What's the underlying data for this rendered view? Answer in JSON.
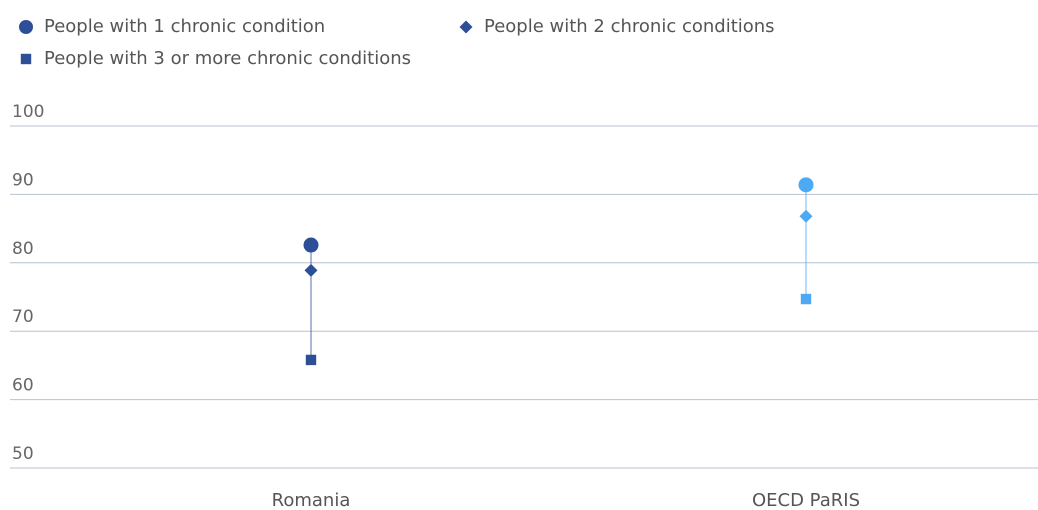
{
  "chart_data": {
    "type": "dot",
    "categories": [
      "Romania",
      "OECD PaRIS"
    ],
    "category_colors": [
      "#2c4f98",
      "#4da9f4"
    ],
    "series": [
      {
        "name": "People with 1 chronic condition",
        "marker": "circle",
        "color": "#2c4f98",
        "values": [
          82.6,
          91.4
        ]
      },
      {
        "name": "People with 2 chronic conditions",
        "marker": "diamond",
        "color": "#2c4f98",
        "values": [
          78.9,
          86.8
        ]
      },
      {
        "name": "People with 3 or more chronic conditions",
        "marker": "square",
        "color": "#2c4f98",
        "values": [
          65.8,
          74.7
        ]
      }
    ],
    "ylim": [
      50,
      100
    ],
    "yticks": [
      50,
      60,
      70,
      80,
      90,
      100
    ],
    "grid": true
  }
}
